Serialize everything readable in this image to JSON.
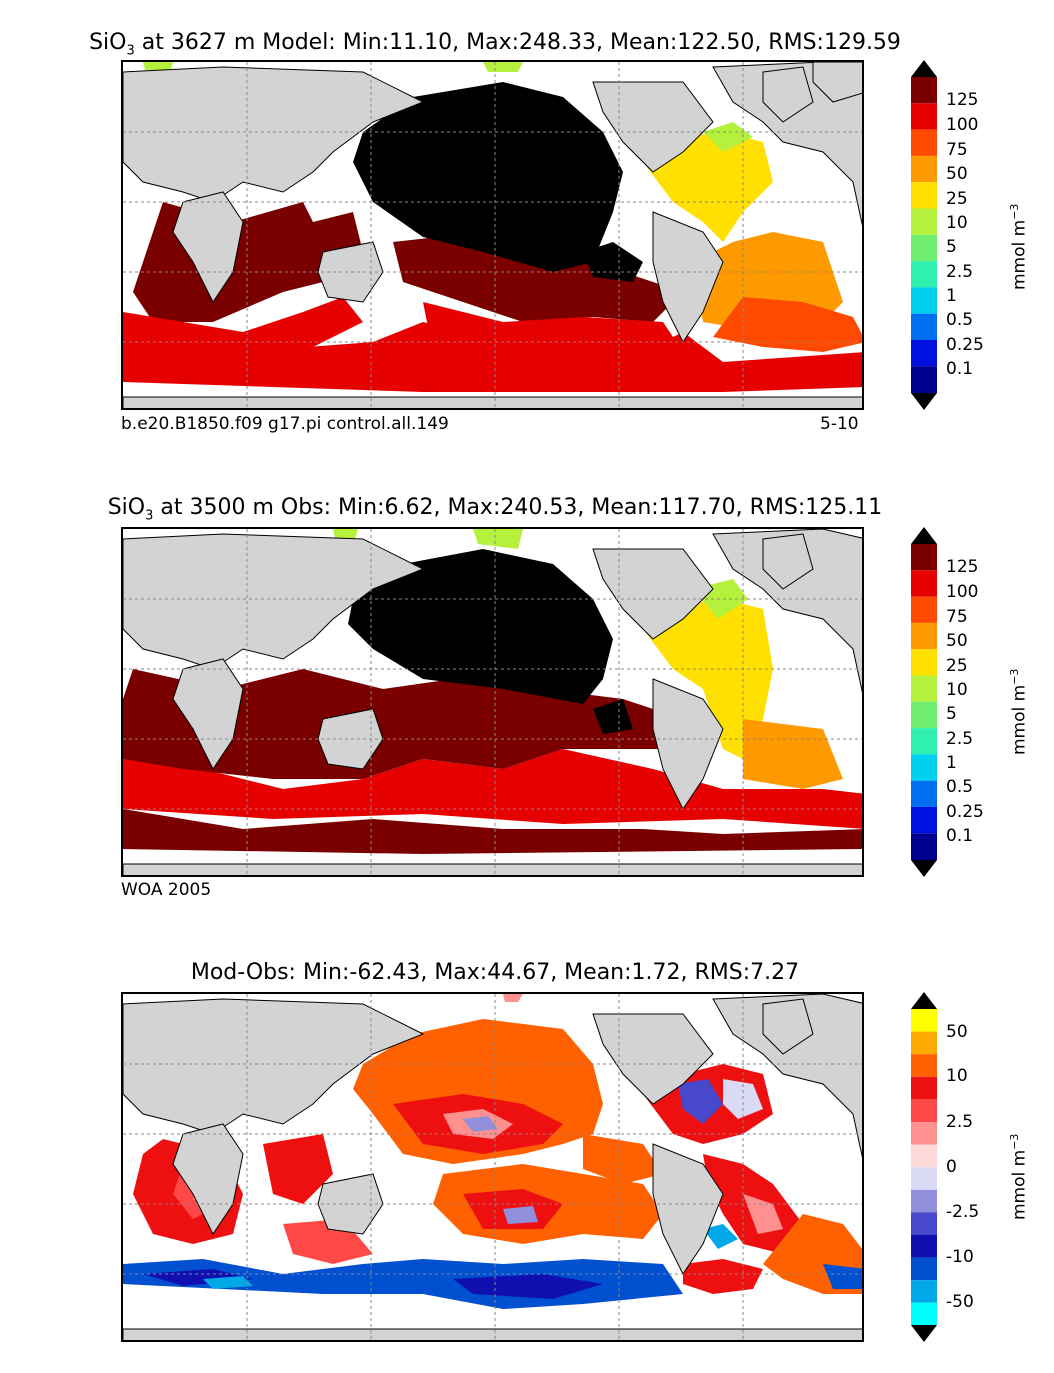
{
  "panels": [
    {
      "id": "model",
      "title_prefix": "SiO",
      "title_sub": "3",
      "title_rest": " at 3627 m Model: Min:11.10, Max:248.33, Mean:122.50, RMS:129.59",
      "caption_left": "b.e20.B1850.f09 g17.pi control.all.149",
      "caption_right": "5-10",
      "colorbar_ticks": [
        "125",
        "100",
        "75",
        "50",
        "25",
        "10",
        "5",
        "2.5",
        "1",
        "0.5",
        "0.25",
        "0.1"
      ],
      "colorbar_colors": [
        "#7a0000",
        "#e60000",
        "#ff4a00",
        "#ff9900",
        "#ffe000",
        "#b5f03c",
        "#70ee70",
        "#30f0b0",
        "#00d0f0",
        "#0070f0",
        "#0010e0",
        "#000090"
      ],
      "units": "mmol m",
      "units_sup": "−3",
      "dominant_values": {
        "north_pacific": ">125 (overflow)",
        "indian_and_south_pacific": "125",
        "atlantic": "25-75",
        "southern_ocean": "100-125"
      }
    },
    {
      "id": "obs",
      "title_prefix": "SiO",
      "title_sub": "3",
      "title_rest": " at 3500 m Obs: Min:6.62, Max:240.53, Mean:117.70, RMS:125.11",
      "caption_left": "WOA 2005",
      "caption_right": "",
      "colorbar_ticks": [
        "125",
        "100",
        "75",
        "50",
        "25",
        "10",
        "5",
        "2.5",
        "1",
        "0.5",
        "0.25",
        "0.1"
      ],
      "colorbar_colors": [
        "#7a0000",
        "#e60000",
        "#ff4a00",
        "#ff9900",
        "#ffe000",
        "#b5f03c",
        "#70ee70",
        "#30f0b0",
        "#00d0f0",
        "#0070f0",
        "#0010e0",
        "#000090"
      ],
      "units": "mmol m",
      "units_sup": "−3",
      "dominant_values": {
        "north_pacific": ">125 (overflow)",
        "indian_and_south_pacific": "125",
        "atlantic": "25-75",
        "southern_ocean": "100-125"
      }
    },
    {
      "id": "diff",
      "title_prefix": "",
      "title_sub": "",
      "title_rest": "Mod-Obs: Min:-62.43, Max:44.67, Mean:1.72, RMS:7.27",
      "caption_left": "",
      "caption_right": "",
      "colorbar_ticks": [
        "50",
        "10",
        "2.5",
        "0",
        "-2.5",
        "-10",
        "-50"
      ],
      "colorbar_colors": [
        "#ffff00",
        "#ffaa00",
        "#ff6000",
        "#ee1010",
        "#ff4848",
        "#ff9090",
        "#ffdada",
        "#dadaf5",
        "#9090dd",
        "#4848cc",
        "#1010b0",
        "#0050d0",
        "#00a8e8",
        "#00ffff"
      ],
      "units": "mmol m",
      "units_sup": "−3",
      "dominant_values": {
        "pacific": "2.5-10 positive",
        "southern_ocean": "-10 to -50 negative",
        "atlantic": "mixed"
      }
    }
  ],
  "colors": {
    "land": "#d3d3d3",
    "no_data": "#ffffff",
    "overflow_high": "#000000",
    "coast": "#000000"
  }
}
